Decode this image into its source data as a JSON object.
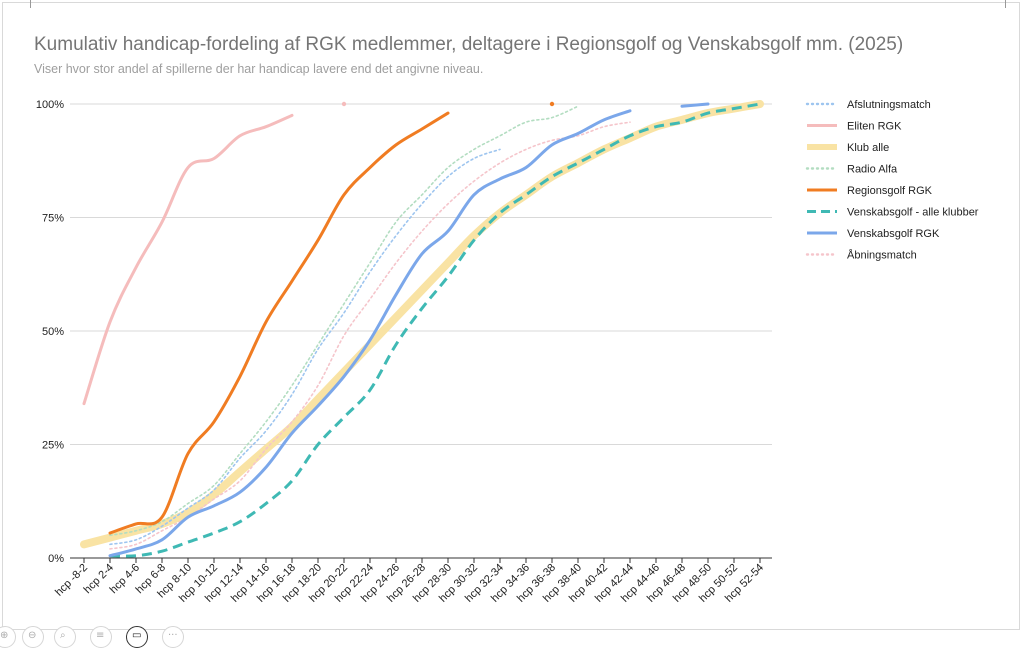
{
  "chart_data": {
    "type": "line",
    "title": "Kumulativ handicap-fordeling af RGK medlemmer, deltagere i Regionsgolf og Venskabsgolf mm. (2025)",
    "subtitle": "Viser hvor stor andel af spillerne der har handicap lavere end det angivne niveau.",
    "categories": [
      "hcp -8-2",
      "hcp 2-4",
      "hcp 4-6",
      "hcp 6-8",
      "hcp 8-10",
      "hcp 10-12",
      "hcp 12-14",
      "hcp 14-16",
      "hcp 16-18",
      "hcp 18-20",
      "hcp 20-22",
      "hcp 22-24",
      "hcp 24-26",
      "hcp 26-28",
      "hcp 28-30",
      "hcp 30-32",
      "hcp 32-34",
      "hcp 34-36",
      "hcp 36-38",
      "hcp 38-40",
      "hcp 40-42",
      "hcp 42-44",
      "hcp 44-46",
      "hcp 46-48",
      "hcp 48-50",
      "hcp 50-52",
      "hcp 52-54"
    ],
    "ylim": [
      0,
      100
    ],
    "yticks": [
      "0%",
      "25%",
      "50%",
      "75%",
      "100%"
    ],
    "ytick_values": [
      0,
      25,
      50,
      75,
      100
    ],
    "grid": true,
    "legend_position": "right",
    "series": [
      {
        "name": "Afslutningsmatch",
        "color": "#9ec5ef",
        "style": "dotted",
        "values": [
          null,
          3,
          4,
          7,
          11,
          15,
          22,
          28,
          36,
          46,
          54,
          63,
          71,
          78,
          84,
          88,
          90,
          null,
          null,
          null,
          null,
          null,
          null,
          null,
          null,
          null,
          null
        ]
      },
      {
        "name": "Eliten RGK",
        "color": "#f5bcbc",
        "style": "solid",
        "values": [
          34,
          52,
          64,
          74,
          86,
          88,
          93,
          95,
          97.5,
          null,
          100,
          null,
          null,
          null,
          null,
          null,
          null,
          null,
          null,
          null,
          null,
          null,
          null,
          null,
          null,
          null,
          null
        ]
      },
      {
        "name": "Klub alle",
        "color": "#f9e3a4",
        "style": "thick",
        "values": [
          3,
          4.5,
          6,
          7.5,
          10,
          14,
          19,
          24,
          29,
          35,
          41,
          47,
          53,
          59,
          65,
          71,
          76,
          80,
          84,
          87,
          90,
          92.5,
          95,
          96.5,
          98,
          99,
          100
        ]
      },
      {
        "name": "Radio Alfa",
        "color": "#b3ddc1",
        "style": "dotted",
        "values": [
          null,
          5,
          6,
          8,
          12,
          16,
          23,
          30,
          38,
          47,
          56,
          65,
          74,
          80,
          86,
          90,
          93,
          96,
          97,
          99.5,
          null,
          null,
          null,
          null,
          null,
          null,
          null
        ]
      },
      {
        "name": "Regionsgolf RGK",
        "color": "#f07c22",
        "style": "solid",
        "values": [
          null,
          5.5,
          7.5,
          9,
          23,
          30,
          40,
          52,
          61,
          70,
          80,
          86,
          91,
          94.5,
          98,
          null,
          null,
          null,
          100,
          null,
          null,
          null,
          null,
          null,
          null,
          null,
          null
        ]
      },
      {
        "name": "Venskabsgolf - alle klubber",
        "color": "#3fb9b4",
        "style": "dashed",
        "values": [
          null,
          0.5,
          0.5,
          1.5,
          3.5,
          5.5,
          8,
          12,
          17,
          25,
          31,
          37,
          47,
          55,
          62,
          70,
          76,
          80,
          84,
          87,
          90,
          93,
          95,
          96,
          98,
          99,
          100
        ]
      },
      {
        "name": "Venskabsgolf RGK",
        "color": "#7ba7ea",
        "style": "solid",
        "values": [
          null,
          0.5,
          2,
          4,
          9,
          11.5,
          14.5,
          20,
          27.5,
          33.5,
          40,
          48,
          58,
          67,
          72,
          80,
          83.5,
          86,
          91,
          93.5,
          96.5,
          98.5,
          null,
          99.5,
          100,
          null,
          null
        ]
      },
      {
        "name": "Åbningsmatch",
        "color": "#f5c5cb",
        "style": "dotted",
        "values": [
          null,
          2,
          3,
          6,
          9,
          13,
          17,
          24,
          30,
          38,
          49,
          57,
          65,
          72,
          78,
          83,
          87,
          90,
          92,
          93,
          95,
          96,
          null,
          null,
          null,
          null,
          null
        ]
      }
    ]
  },
  "toolbar": {
    "buttons": [
      "zoom-in",
      "zoom-out",
      "search",
      "list",
      "video",
      "more"
    ]
  }
}
